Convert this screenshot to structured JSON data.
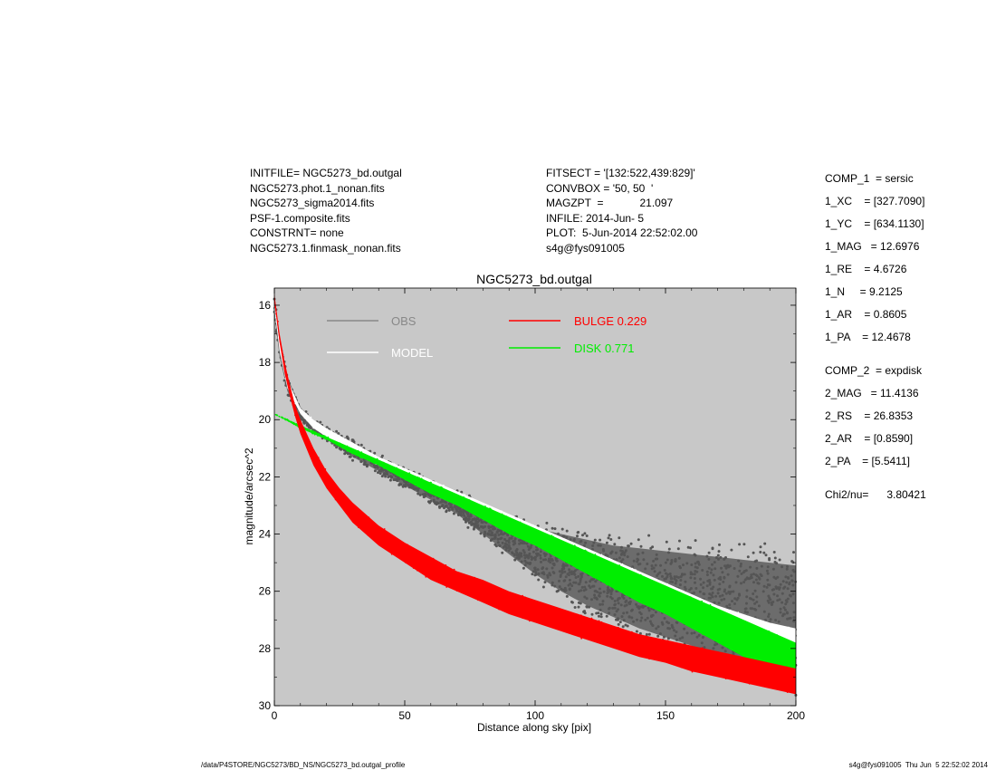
{
  "header": {
    "left_lines": [
      "INITFILE= NGC5273_bd.outgal",
      "NGC5273.phot.1_nonan.fits",
      "NGC5273_sigma2014.fits",
      "PSF-1.composite.fits",
      "CONSTRNT= none",
      "NGC5273.1.finmask_nonan.fits"
    ],
    "middle_lines": [
      "FITSECT = '[132:522,439:829]'",
      "CONVBOX = '50, 50  '",
      "MAGZPT  =            21.097",
      "INFILE: 2014-Jun- 5",
      "PLOT:  5-Jun-2014 22:52:02.00",
      "s4g@fys091005"
    ]
  },
  "parameters": [
    "COMP_1  = sersic",
    "1_XC    = [327.7090]",
    "1_YC    = [634.1130]",
    "1_MAG   = 12.6976",
    "1_RE    = 4.6726",
    "1_N     = 9.2125",
    "1_AR    = 0.8605",
    "1_PA    = 12.4678",
    "COMP_2  = expdisk",
    "2_MAG   = 11.4136",
    "2_RS    = 26.8353",
    "2_AR    = [0.8590]",
    "2_PA    = [5.5411]",
    "Chi2/nu=      3.80421"
  ],
  "footer": {
    "left": "/data/P4STORE/NGC5273/BD_NS/NGC5273_bd.outgal_profile",
    "right": "s4g@fys091005  Thu Jun  5 22:52:02 2014"
  },
  "colors": {
    "plot_background": "#c8c8c8",
    "obs": "#555555",
    "obs_legend": "#888888",
    "model": "#ffffff",
    "bulge": "#ff0000",
    "disk": "#00ee00"
  },
  "chart_data": {
    "type": "scatter",
    "title": "NGC5273_bd.outgal",
    "xlabel": "Distance along sky [pix]",
    "ylabel": "magnitude/arcsec^2",
    "xlim": [
      0,
      200
    ],
    "ylim": [
      30,
      15.4
    ],
    "y_inverted": true,
    "grid": false,
    "x_ticks": [
      0,
      50,
      100,
      150,
      200
    ],
    "y_ticks": [
      16,
      18,
      20,
      22,
      24,
      26,
      28,
      30
    ],
    "legend": [
      {
        "label": "OBS",
        "color": "#888888",
        "placement": "top-left"
      },
      {
        "label": "MODEL",
        "color": "#ffffff",
        "placement": "top-left"
      },
      {
        "label": "BULGE  0.229",
        "color": "#ff0000",
        "placement": "top-center"
      },
      {
        "label": "DISK  0.771",
        "color": "#00ee00",
        "placement": "top-center"
      }
    ],
    "series": [
      {
        "name": "OBS",
        "kind": "band",
        "x": [
          0,
          2,
          5,
          10,
          15,
          20,
          30,
          40,
          50,
          60,
          70,
          80,
          90,
          100,
          110,
          120,
          130,
          140,
          150,
          160,
          170,
          180,
          190,
          200
        ],
        "y_low": [
          15.8,
          17.2,
          18.5,
          19.6,
          20.0,
          20.3,
          20.8,
          21.3,
          21.8,
          22.2,
          22.6,
          23.1,
          23.5,
          23.8,
          24.0,
          24.2,
          24.4,
          24.5,
          24.6,
          24.7,
          24.8,
          24.9,
          25.0,
          25.1
        ],
        "y_high": [
          16.3,
          17.8,
          19.0,
          20.0,
          20.4,
          20.7,
          21.3,
          21.8,
          22.3,
          22.8,
          23.3,
          24.0,
          24.7,
          25.4,
          26.0,
          26.5,
          26.9,
          27.3,
          27.6,
          27.9,
          28.2,
          28.5,
          28.8,
          29.2
        ]
      },
      {
        "name": "MODEL",
        "kind": "band",
        "x": [
          0,
          2,
          5,
          10,
          15,
          20,
          30,
          40,
          50,
          60,
          70,
          80,
          90,
          100,
          110,
          120,
          130,
          140,
          150,
          160,
          170,
          180,
          190,
          200
        ],
        "y_low": [
          15.9,
          17.3,
          18.6,
          19.6,
          20.0,
          20.3,
          20.8,
          21.3,
          21.7,
          22.1,
          22.5,
          22.9,
          23.3,
          23.7,
          24.1,
          24.5,
          24.9,
          25.3,
          25.7,
          26.1,
          26.5,
          26.8,
          27.1,
          27.3
        ],
        "y_high": [
          16.1,
          17.6,
          18.9,
          19.8,
          20.3,
          20.6,
          21.1,
          21.6,
          22.0,
          22.5,
          22.9,
          23.3,
          23.7,
          24.1,
          24.6,
          25.0,
          25.5,
          26.0,
          26.4,
          26.8,
          27.2,
          27.7,
          28.1,
          28.5
        ]
      },
      {
        "name": "DISK  0.771",
        "kind": "band",
        "x": [
          0,
          10,
          20,
          30,
          40,
          50,
          60,
          70,
          80,
          90,
          100,
          110,
          120,
          130,
          140,
          150,
          160,
          170,
          180,
          190,
          200
        ],
        "y_low": [
          19.8,
          20.2,
          20.6,
          21.0,
          21.4,
          21.8,
          22.2,
          22.6,
          23.0,
          23.4,
          23.8,
          24.2,
          24.6,
          25.0,
          25.4,
          25.8,
          26.2,
          26.6,
          27.0,
          27.4,
          27.8
        ],
        "y_high": [
          19.8,
          20.3,
          20.7,
          21.2,
          21.6,
          22.1,
          22.6,
          23.0,
          23.5,
          24.0,
          24.4,
          24.9,
          25.4,
          25.9,
          26.4,
          26.8,
          27.3,
          27.8,
          28.3,
          28.7,
          29.2
        ]
      },
      {
        "name": "BULGE  0.229",
        "kind": "band",
        "x": [
          0,
          1,
          2,
          4,
          6,
          8,
          10,
          15,
          20,
          25,
          30,
          40,
          50,
          60,
          70,
          80,
          90,
          100,
          110,
          120,
          130,
          140,
          150,
          160,
          170,
          180,
          190,
          200
        ],
        "y_low": [
          15.6,
          16.3,
          17.0,
          18.0,
          18.8,
          19.5,
          20.0,
          21.0,
          21.8,
          22.4,
          22.9,
          23.7,
          24.3,
          24.8,
          25.3,
          25.6,
          26.0,
          26.3,
          26.6,
          26.9,
          27.2,
          27.5,
          27.7,
          27.9,
          28.1,
          28.3,
          28.5,
          28.7
        ],
        "y_high": [
          15.9,
          16.6,
          17.3,
          18.4,
          19.2,
          19.9,
          20.5,
          21.6,
          22.4,
          23.0,
          23.6,
          24.4,
          25.0,
          25.6,
          26.0,
          26.4,
          26.8,
          27.1,
          27.4,
          27.7,
          28.0,
          28.3,
          28.5,
          28.8,
          29.0,
          29.2,
          29.4,
          29.6
        ]
      }
    ]
  }
}
